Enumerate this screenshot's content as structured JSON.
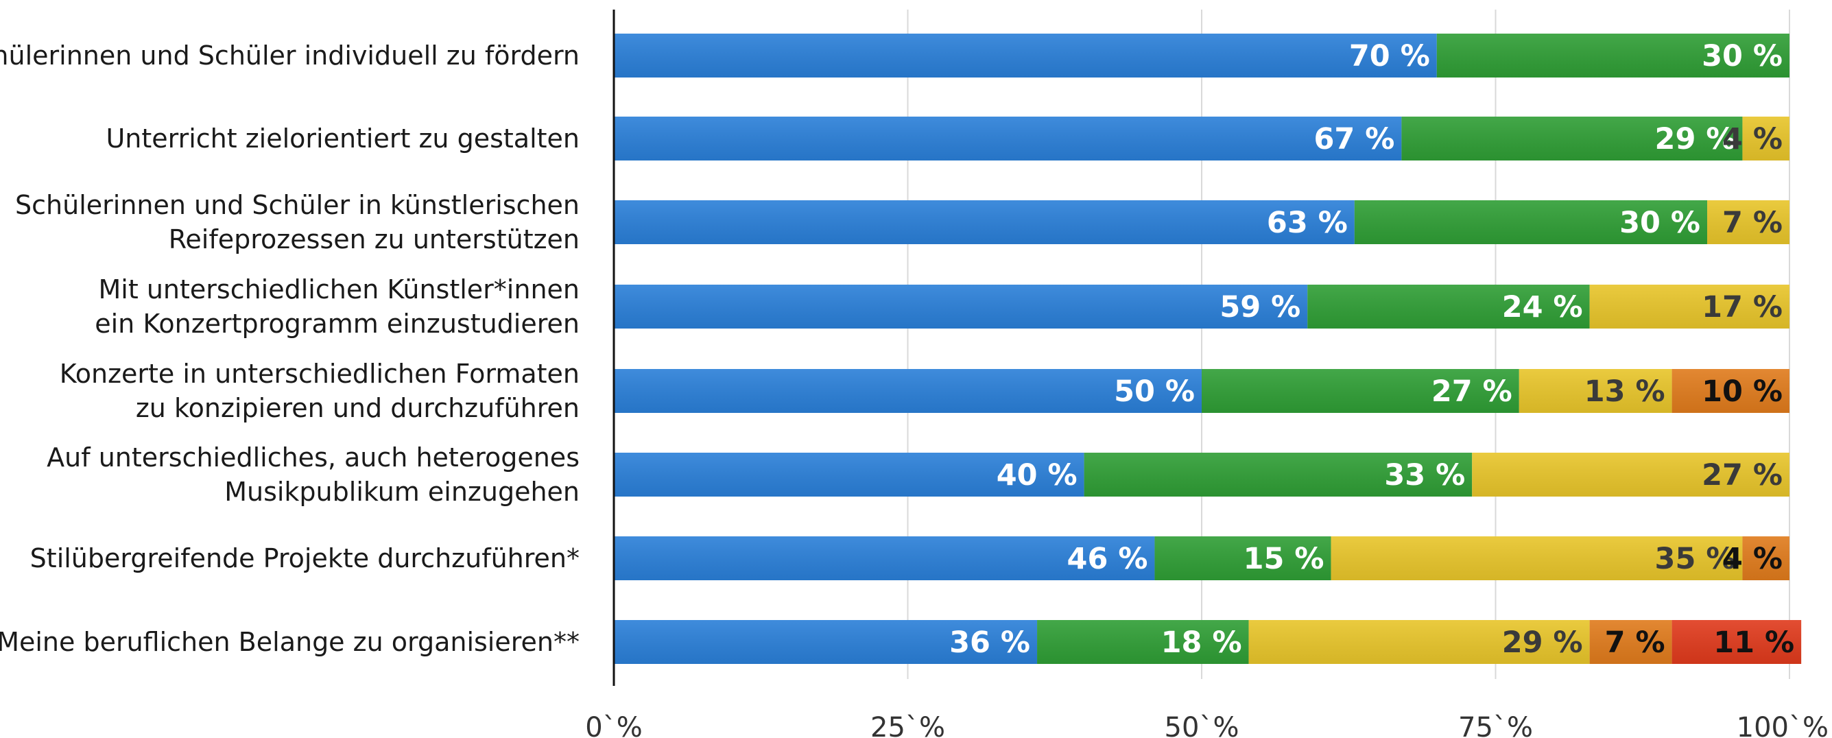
{
  "chart_data": {
    "type": "bar",
    "orientation": "horizontal",
    "stacked": true,
    "categories": [
      [
        "Schülerinnen und Schüler individuell zu fördern"
      ],
      [
        "Unterricht zielorientiert zu gestalten"
      ],
      [
        "Schülerinnen und Schüler in künstlerischen",
        "Reifeprozessen zu unterstützen"
      ],
      [
        "Mit unterschiedlichen Künstler*innen",
        "ein Konzertprogramm einzustudieren"
      ],
      [
        "Konzerte in unterschiedlichen Formaten",
        "zu konzipieren und durchzuführen"
      ],
      [
        "Auf unterschiedliches, auch heterogenes",
        "Musikpublikum einzugehen"
      ],
      [
        "Stilübergreifende Projekte durchzuführen*"
      ],
      [
        "Meine beruflichen Belange zu organisieren**"
      ]
    ],
    "series": [
      {
        "color": "#2a7fd8",
        "label_color": "#ffffff",
        "values": [
          70,
          67,
          63,
          59,
          50,
          40,
          46,
          36
        ]
      },
      {
        "color": "#2f9e35",
        "label_color": "#ffffff",
        "values": [
          30,
          29,
          30,
          24,
          27,
          33,
          15,
          18
        ]
      },
      {
        "color": "#e8c52a",
        "label_color": "#3a3a3a",
        "values": [
          0,
          4,
          7,
          17,
          13,
          27,
          35,
          29
        ]
      },
      {
        "color": "#e07b1c",
        "label_color": "#111111",
        "values": [
          0,
          0,
          0,
          0,
          10,
          0,
          4,
          7
        ]
      },
      {
        "color": "#e03a1c",
        "label_color": "#111111",
        "values": [
          0,
          0,
          0,
          0,
          0,
          0,
          0,
          11
        ]
      }
    ],
    "value_suffix": " %",
    "xlim": [
      0,
      100
    ],
    "xticks": [
      "0`%",
      "25`%",
      "50`%",
      "75`%",
      "100`%"
    ],
    "grid": true,
    "title": "",
    "xlabel": "",
    "ylabel": ""
  }
}
